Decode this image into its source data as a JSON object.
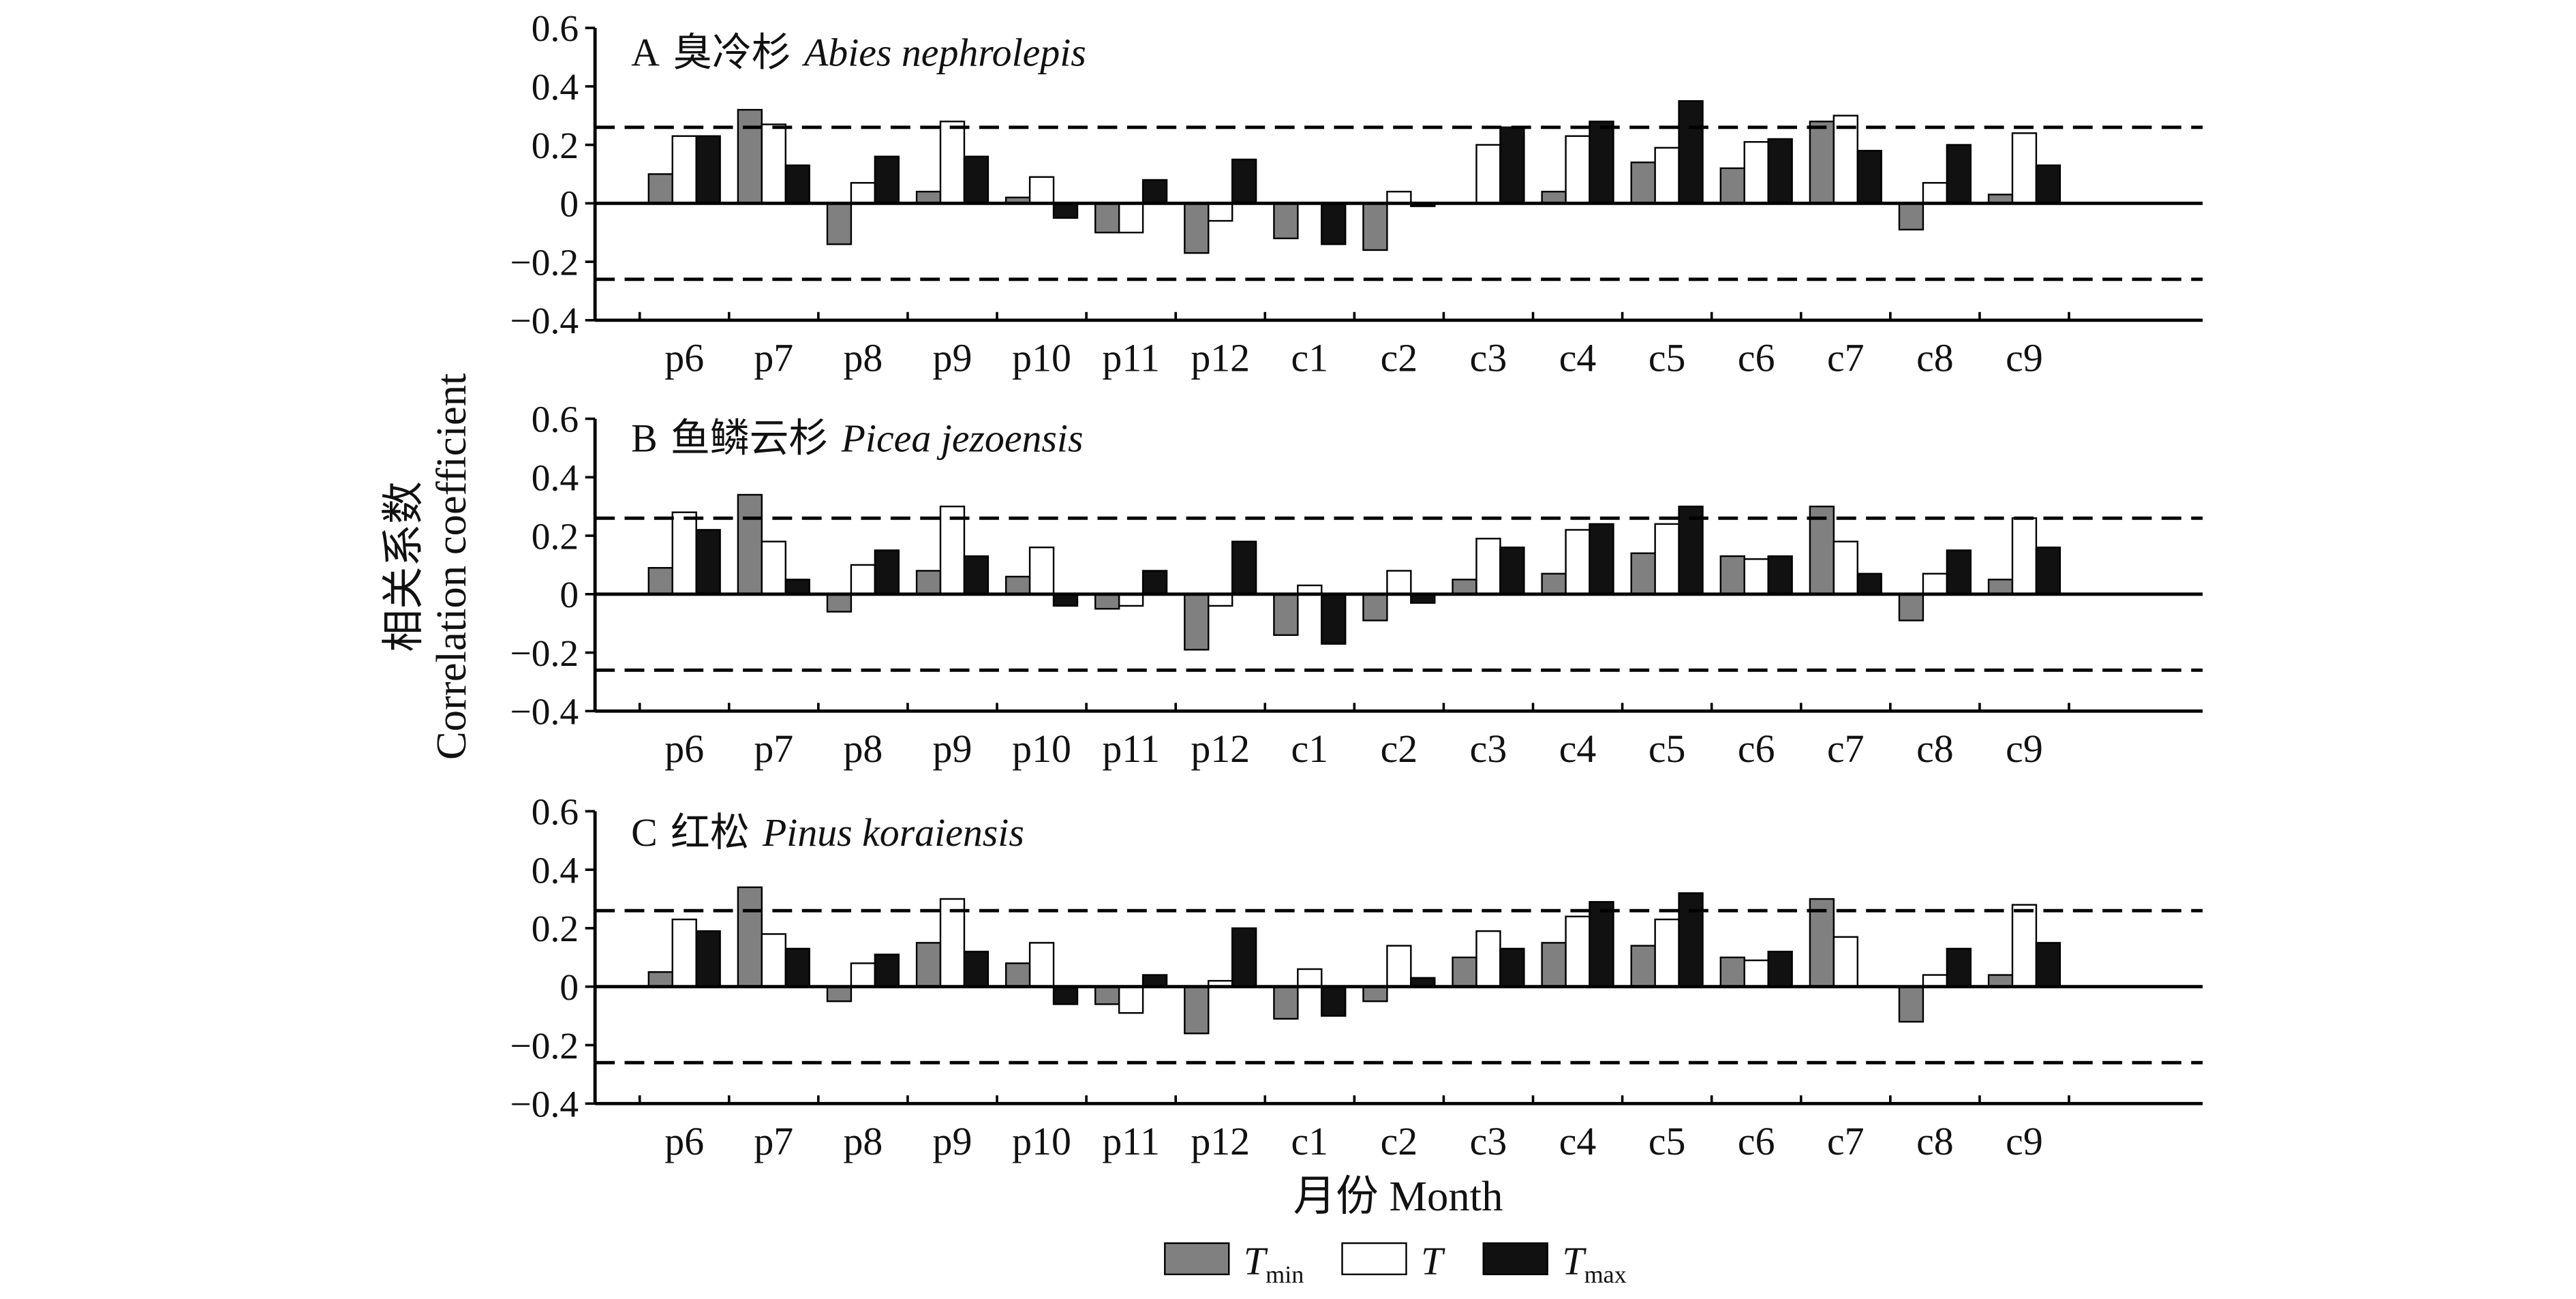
{
  "chart_data": {
    "type": "bar",
    "categories": [
      "p6",
      "p7",
      "p8",
      "p9",
      "p10",
      "p11",
      "p12",
      "c1",
      "c2",
      "c3",
      "c4",
      "c5",
      "c6",
      "c7",
      "c8",
      "c9"
    ],
    "ylim": [
      -0.4,
      0.6
    ],
    "yticks": [
      0.6,
      0.4,
      0.2,
      0,
      -0.2,
      -0.4
    ],
    "ytick_labels": [
      "0.6",
      "0.4",
      "0.2",
      "0",
      "−0.2",
      "−0.4"
    ],
    "reference_lines": [
      0.26,
      -0.26
    ],
    "grid": false,
    "xlabel": "月份 Month",
    "ylabel": [
      "相关系数",
      "Correlation coefficient"
    ],
    "legend_position": "bottom-center",
    "series": [
      {
        "name": "T",
        "subscript": "min",
        "color": "#808080"
      },
      {
        "name": "T",
        "color": "#ffffff"
      },
      {
        "name": "T",
        "subscript": "max",
        "color": "#111111"
      }
    ],
    "panels": [
      {
        "letter": "A",
        "name_cn": "臭冷杉",
        "name_latin": "Abies nephrolepis",
        "values": [
          [
            0.1,
            0.32,
            -0.14,
            0.04,
            0.02,
            -0.1,
            -0.17,
            -0.12,
            -0.16,
            0.0,
            0.04,
            0.14,
            0.12,
            0.28,
            -0.09,
            0.03
          ],
          [
            0.23,
            0.27,
            0.07,
            0.28,
            0.09,
            -0.1,
            -0.06,
            0.0,
            0.04,
            0.2,
            0.23,
            0.19,
            0.21,
            0.3,
            0.07,
            0.24
          ],
          [
            0.23,
            0.13,
            0.16,
            0.16,
            -0.05,
            0.08,
            0.15,
            -0.14,
            -0.01,
            0.26,
            0.28,
            0.35,
            0.22,
            0.18,
            0.2,
            0.13
          ]
        ]
      },
      {
        "letter": "B",
        "name_cn": "鱼鳞云杉",
        "name_latin": "Picea jezoensis",
        "values": [
          [
            0.09,
            0.34,
            -0.06,
            0.08,
            0.06,
            -0.05,
            -0.19,
            -0.14,
            -0.09,
            0.05,
            0.07,
            0.14,
            0.13,
            0.3,
            -0.09,
            0.05
          ],
          [
            0.28,
            0.18,
            0.1,
            0.3,
            0.16,
            -0.04,
            -0.04,
            0.03,
            0.08,
            0.19,
            0.22,
            0.24,
            0.12,
            0.18,
            0.07,
            0.26
          ],
          [
            0.22,
            0.05,
            0.15,
            0.13,
            -0.04,
            0.08,
            0.18,
            -0.17,
            -0.03,
            0.16,
            0.24,
            0.3,
            0.13,
            0.07,
            0.15,
            0.16
          ]
        ]
      },
      {
        "letter": "C",
        "name_cn": "红松",
        "name_latin": "Pinus koraiensis",
        "values": [
          [
            0.05,
            0.34,
            -0.05,
            0.15,
            0.08,
            -0.06,
            -0.16,
            -0.11,
            -0.05,
            0.1,
            0.15,
            0.14,
            0.1,
            0.3,
            -0.12,
            0.04
          ],
          [
            0.23,
            0.18,
            0.08,
            0.3,
            0.15,
            -0.09,
            0.02,
            0.06,
            0.14,
            0.19,
            0.24,
            0.23,
            0.09,
            0.17,
            0.04,
            0.28
          ],
          [
            0.19,
            0.13,
            0.11,
            0.12,
            -0.06,
            0.04,
            0.2,
            -0.1,
            0.03,
            0.13,
            0.29,
            0.32,
            0.12,
            0.0,
            0.13,
            0.15
          ]
        ]
      }
    ]
  }
}
